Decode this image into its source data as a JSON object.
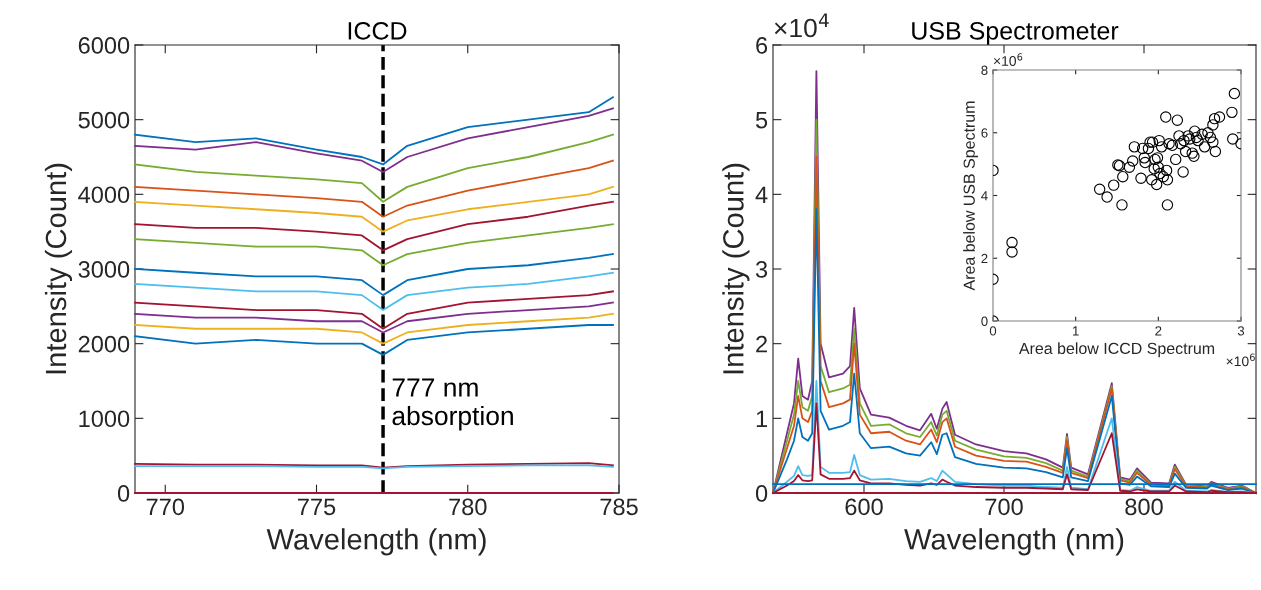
{
  "chart_data": [
    {
      "type": "line",
      "title": "ICCD",
      "xlabel": "Wavelength (nm)",
      "ylabel": "Intensity (Count)",
      "xlim": [
        769,
        785
      ],
      "xticks": [
        770,
        775,
        780,
        785
      ],
      "ylim": [
        0,
        6000
      ],
      "yticks": [
        0,
        1000,
        2000,
        3000,
        4000,
        5000,
        6000
      ],
      "x": [
        769,
        771,
        773,
        775,
        776.5,
        777.2,
        778,
        780,
        782,
        784,
        784.8
      ],
      "series": [
        {
          "color": "#0072bd",
          "values": [
            4800,
            4700,
            4750,
            4600,
            4500,
            4400,
            4650,
            4900,
            5000,
            5100,
            5300
          ]
        },
        {
          "color": "#7e2f8e",
          "values": [
            4650,
            4600,
            4700,
            4550,
            4450,
            4300,
            4500,
            4750,
            4900,
            5050,
            5150
          ]
        },
        {
          "color": "#77ac30",
          "values": [
            4400,
            4300,
            4250,
            4200,
            4150,
            3900,
            4100,
            4350,
            4500,
            4700,
            4800
          ]
        },
        {
          "color": "#d95319",
          "values": [
            4100,
            4050,
            4000,
            3950,
            3900,
            3700,
            3850,
            4050,
            4200,
            4350,
            4450
          ]
        },
        {
          "color": "#edb120",
          "values": [
            3900,
            3850,
            3800,
            3750,
            3700,
            3500,
            3650,
            3800,
            3900,
            4000,
            4100
          ]
        },
        {
          "color": "#a2142f",
          "values": [
            3600,
            3550,
            3550,
            3500,
            3450,
            3250,
            3400,
            3600,
            3700,
            3850,
            3900
          ]
        },
        {
          "color": "#77ac30",
          "values": [
            3400,
            3350,
            3300,
            3300,
            3250,
            3050,
            3200,
            3350,
            3450,
            3550,
            3600
          ]
        },
        {
          "color": "#0072bd",
          "values": [
            3000,
            2950,
            2900,
            2900,
            2850,
            2650,
            2850,
            3000,
            3050,
            3150,
            3200
          ]
        },
        {
          "color": "#4dbeee",
          "values": [
            2800,
            2750,
            2700,
            2700,
            2650,
            2450,
            2650,
            2750,
            2800,
            2900,
            2950
          ]
        },
        {
          "color": "#a2142f",
          "values": [
            2550,
            2500,
            2450,
            2450,
            2400,
            2200,
            2400,
            2550,
            2600,
            2650,
            2700
          ]
        },
        {
          "color": "#7e2f8e",
          "values": [
            2400,
            2350,
            2350,
            2300,
            2300,
            2150,
            2300,
            2400,
            2450,
            2500,
            2550
          ]
        },
        {
          "color": "#edb120",
          "values": [
            2250,
            2200,
            2200,
            2200,
            2150,
            2000,
            2150,
            2250,
            2300,
            2350,
            2400
          ]
        },
        {
          "color": "#0072bd",
          "values": [
            2100,
            2000,
            2050,
            2000,
            2000,
            1850,
            2050,
            2150,
            2200,
            2250,
            2250
          ]
        },
        {
          "color": "#a2142f",
          "values": [
            390,
            380,
            380,
            370,
            370,
            340,
            360,
            380,
            390,
            400,
            370
          ]
        },
        {
          "color": "#4dbeee",
          "values": [
            360,
            360,
            360,
            350,
            350,
            330,
            350,
            360,
            370,
            370,
            350
          ]
        },
        {
          "color": "#a2142f",
          "values": [
            0,
            0,
            0,
            0,
            0,
            0,
            0,
            0,
            0,
            0,
            0
          ]
        }
      ],
      "ref_lines": [
        {
          "axis": "x",
          "value": 777.2,
          "color": "#000000",
          "line_style": "dashed"
        }
      ],
      "annotations": [
        "777 nm\nabsorption"
      ]
    },
    {
      "type": "line",
      "title": "USB Spectrometer",
      "xlabel": "Wavelength (nm)",
      "ylabel": "Intensity (Count)",
      "xlim": [
        535,
        880
      ],
      "xticks": [
        600,
        700,
        800
      ],
      "ylim": [
        0,
        6
      ],
      "yticks": [
        0,
        1,
        2,
        3,
        4,
        5,
        6
      ],
      "x": [
        535,
        545,
        550,
        553,
        556,
        560,
        563,
        566,
        569,
        575,
        585,
        590,
        593,
        597,
        605,
        618,
        630,
        640,
        648,
        652,
        656,
        659,
        665,
        680,
        700,
        716,
        730,
        742,
        745,
        748,
        760,
        777,
        783,
        790,
        795,
        805,
        818,
        822,
        830,
        845,
        848,
        860,
        870,
        880
      ],
      "series": [
        {
          "color": "#7e2f8e",
          "values": [
            0,
            0.8,
            1.2,
            1.8,
            1.3,
            1.25,
            1.5,
            5.65,
            2.0,
            1.55,
            1.6,
            1.7,
            2.48,
            1.4,
            1.05,
            1.01,
            0.9,
            0.84,
            1.06,
            0.86,
            1.13,
            1.22,
            0.78,
            0.65,
            0.56,
            0.53,
            0.45,
            0.34,
            0.79,
            0.34,
            0.25,
            1.47,
            0.21,
            0.18,
            0.33,
            0.14,
            0.13,
            0.38,
            0.11,
            0.09,
            0.15,
            0.07,
            0.1,
            0
          ]
        },
        {
          "color": "#77ac30",
          "values": [
            0,
            0.7,
            1.05,
            1.5,
            1.15,
            1.1,
            1.3,
            5.0,
            1.7,
            1.35,
            1.4,
            1.45,
            2.2,
            1.2,
            0.9,
            0.92,
            0.8,
            0.75,
            0.95,
            0.77,
            1.05,
            1.1,
            0.7,
            0.58,
            0.49,
            0.47,
            0.4,
            0.3,
            0.75,
            0.3,
            0.22,
            1.43,
            0.19,
            0.16,
            0.3,
            0.12,
            0.11,
            0.35,
            0.1,
            0.08,
            0.13,
            0.06,
            0.09,
            0
          ]
        },
        {
          "color": "#d95319",
          "values": [
            0,
            0.6,
            0.9,
            1.3,
            1.0,
            0.95,
            1.1,
            4.5,
            1.5,
            1.15,
            1.2,
            1.25,
            2.0,
            1.05,
            0.8,
            0.82,
            0.7,
            0.65,
            0.85,
            0.68,
            0.95,
            1.0,
            0.62,
            0.5,
            0.43,
            0.42,
            0.35,
            0.27,
            0.7,
            0.27,
            0.2,
            1.4,
            0.17,
            0.14,
            0.27,
            0.11,
            0.1,
            0.32,
            0.09,
            0.07,
            0.12,
            0.05,
            0.08,
            0
          ]
        },
        {
          "color": "#0072bd",
          "values": [
            0,
            0.45,
            0.7,
            1.0,
            0.75,
            0.7,
            0.8,
            3.8,
            1.1,
            0.85,
            0.9,
            0.95,
            1.6,
            0.8,
            0.6,
            0.62,
            0.53,
            0.5,
            0.68,
            0.52,
            0.78,
            0.8,
            0.48,
            0.39,
            0.34,
            0.33,
            0.28,
            0.21,
            0.6,
            0.21,
            0.16,
            1.3,
            0.13,
            0.11,
            0.22,
            0.09,
            0.08,
            0.26,
            0.07,
            0.06,
            0.1,
            0.04,
            0.06,
            0
          ]
        },
        {
          "color": "#4dbeee",
          "values": [
            0,
            0.15,
            0.23,
            0.36,
            0.24,
            0.23,
            0.24,
            1.5,
            0.35,
            0.27,
            0.27,
            0.28,
            0.51,
            0.24,
            0.18,
            0.19,
            0.16,
            0.15,
            0.2,
            0.16,
            0.3,
            0.25,
            0.15,
            0.12,
            0.1,
            0.1,
            0.08,
            0.07,
            0.35,
            0.07,
            0.05,
            1.0,
            0.04,
            0.03,
            0.08,
            0.03,
            0.03,
            0.15,
            0.03,
            0.02,
            0.04,
            0.01,
            0.02,
            0
          ]
        },
        {
          "color": "#a2142f",
          "values": [
            0,
            0.1,
            0.16,
            0.24,
            0.17,
            0.16,
            0.17,
            1.2,
            0.25,
            0.19,
            0.19,
            0.2,
            0.3,
            0.17,
            0.13,
            0.13,
            0.11,
            0.1,
            0.13,
            0.11,
            0.18,
            0.15,
            0.1,
            0.08,
            0.07,
            0.07,
            0.06,
            0.05,
            0.25,
            0.05,
            0.04,
            0.8,
            0.03,
            0.02,
            0.05,
            0.02,
            0.02,
            0.1,
            0.02,
            0.01,
            0.03,
            0.01,
            0.01,
            0
          ]
        },
        {
          "color": "#0072bd",
          "x": [
            535,
            880
          ],
          "values": [
            0.12,
            0.12
          ]
        },
        {
          "color": "#a2142f",
          "x": [
            535,
            880
          ],
          "values": [
            0,
            0
          ]
        }
      ],
      "annotations": [
        "×10$^{4}$"
      ]
    },
    {
      "type": "scatter",
      "xlabel": "Area below ICCD Spectrum",
      "ylabel": "Area below USB Spectrum",
      "marker": "circle",
      "xlim": [
        0,
        3
      ],
      "ylim": [
        0,
        8
      ],
      "xticks": [
        0,
        1,
        2,
        3
      ],
      "yticks": [
        0,
        2,
        4,
        6,
        8
      ],
      "series": [
        {
          "color": "#000000",
          "x": [
            0,
            0,
            0,
            0.23,
            0.23,
            1.29,
            1.38,
            1.46,
            1.51,
            1.53,
            1.57,
            1.56,
            1.65,
            1.69,
            1.71,
            1.79,
            1.81,
            1.83,
            1.84,
            1.88,
            1.9,
            1.92,
            1.93,
            1.95,
            1.96,
            1.98,
            1.99,
            2.0,
            2.01,
            2.02,
            2.04,
            2.06,
            2.09,
            2.1,
            2.11,
            2.11,
            2.13,
            2.17,
            2.21,
            2.23,
            2.25,
            2.27,
            2.3,
            2.31,
            2.33,
            2.36,
            2.38,
            2.41,
            2.43,
            2.44,
            2.46,
            2.48,
            2.53,
            2.56,
            2.6,
            2.63,
            2.66,
            2.66,
            2.68,
            2.69,
            2.74,
            2.89,
            2.9,
            2.92,
            3.0
          ],
          "values": [
            0,
            1.33,
            4.8,
            2.5,
            2.2,
            4.2,
            3.95,
            4.33,
            4.97,
            4.95,
            4.6,
            3.7,
            4.9,
            5.1,
            5.55,
            4.55,
            5.5,
            5.2,
            5.05,
            5.5,
            5.7,
            4.5,
            5.7,
            4.85,
            5.15,
            4.35,
            5.2,
            4.9,
            5.75,
            4.7,
            5.55,
            4.6,
            6.5,
            4.8,
            4.5,
            3.7,
            5.65,
            5.6,
            5.15,
            6.4,
            5.9,
            5.65,
            4.75,
            5.75,
            5.4,
            5.9,
            5.8,
            5.35,
            5.25,
            6.05,
            5.85,
            5.75,
            5.95,
            5.55,
            6.0,
            5.85,
            5.7,
            6.25,
            6.45,
            5.4,
            6.5,
            6.65,
            5.8,
            7.25,
            5.65
          ]
        }
      ],
      "annotations": [
        "×10$^{6}$",
        "×10$^{6}$"
      ]
    }
  ]
}
